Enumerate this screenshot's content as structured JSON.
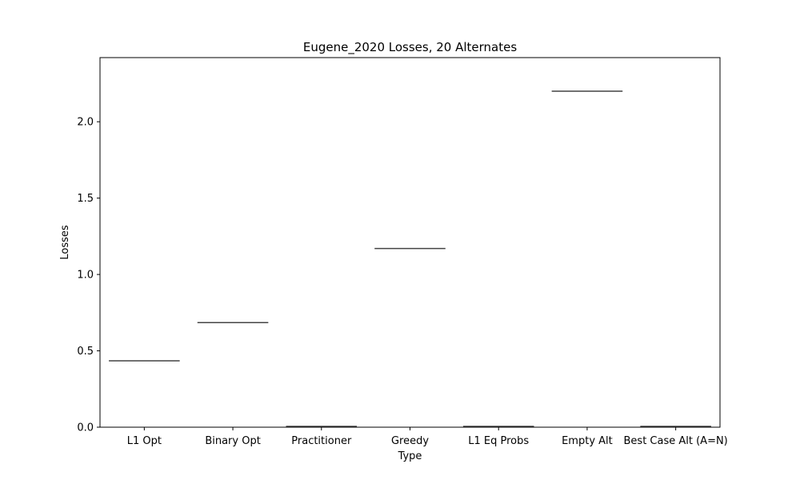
{
  "chart_data": {
    "type": "box",
    "title": "Eugene_2020 Losses, 20 Alternates",
    "xlabel": "Type",
    "ylabel": "Losses",
    "ylim": [
      0,
      2.42
    ],
    "yticks": [
      0.0,
      0.5,
      1.0,
      1.5,
      2.0
    ],
    "ytick_labels": [
      "0.0",
      "0.5",
      "1.0",
      "1.5",
      "2.0"
    ],
    "categories": [
      "L1 Opt",
      "Binary Opt",
      "Practitioner",
      "Greedy",
      "L1 Eq Probs",
      "Empty Alt",
      "Best Case Alt (A=N)"
    ],
    "values": [
      0.435,
      0.685,
      0.0,
      1.17,
      0.0,
      2.2,
      0.0
    ],
    "grid": false,
    "legend": "none",
    "colors": {
      "median_line": "#444444",
      "axes": "#000000",
      "background": "#ffffff"
    }
  }
}
